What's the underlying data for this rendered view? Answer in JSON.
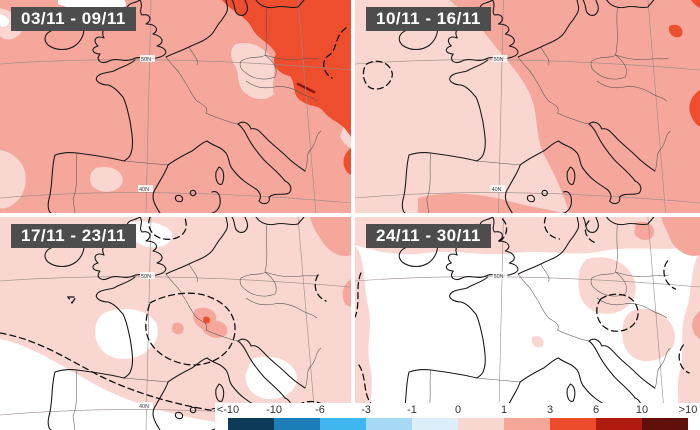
{
  "panels": [
    {
      "label": "03/11 - 09/11"
    },
    {
      "label": "10/11 - 16/11"
    },
    {
      "label": "17/11 - 23/11"
    },
    {
      "label": "24/11 - 30/11"
    }
  ],
  "graticule": {
    "lat50": "50N",
    "lat40": "40N"
  },
  "legend": {
    "ticks": [
      "<-10",
      "-10",
      "-6",
      "-3",
      "-1",
      "0",
      "1",
      "3",
      "6",
      "10",
      ">10"
    ],
    "colors": [
      "#0d3a56",
      "#1d7db8",
      "#3fb7ee",
      "#a8d9f4",
      "#dceefa",
      "#f9d7d1",
      "#f4a698",
      "#ec4b2c",
      "#b01b10",
      "#600f0a"
    ]
  },
  "colors": {
    "labelbox": "#4d4d4d",
    "labeltext": "#ffffff",
    "c01": "#f9d6d0",
    "c13": "#f4a79a",
    "c36": "#ee4e2d",
    "c610": "#8c150e",
    "coast": "#1a1a1a",
    "border": "#555555",
    "graticule": "#9a8c88",
    "dash": "#111111"
  }
}
